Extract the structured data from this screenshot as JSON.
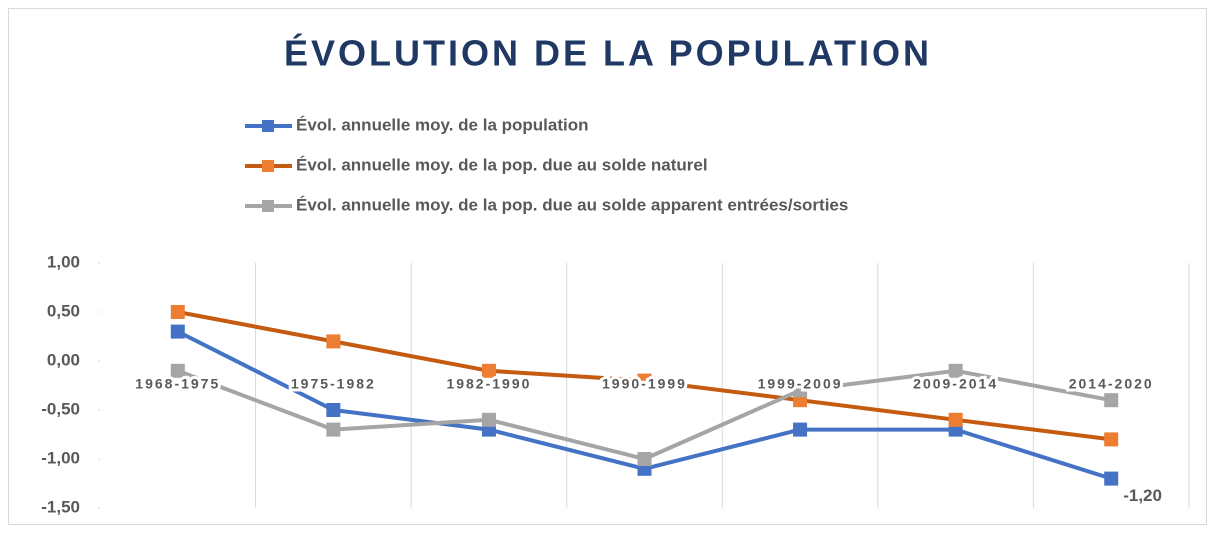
{
  "chart_data": {
    "type": "line",
    "title": "ÉVOLUTION DE LA POPULATION",
    "categories": [
      "1968-1975",
      "1975-1982",
      "1982-1990",
      "1990-1999",
      "1999-2009",
      "2009-2014",
      "2014-2020"
    ],
    "series": [
      {
        "name": "Évol. annuelle moy. de la population",
        "color": "#4472c4",
        "values": [
          0.3,
          -0.5,
          -0.7,
          -1.1,
          -0.7,
          -0.7,
          -1.2
        ],
        "value_labels": [
          null,
          null,
          null,
          null,
          null,
          null,
          "-1,20"
        ]
      },
      {
        "name": "Évol. annuelle moy. de la pop. due au solde naturel",
        "color": "#c55a11",
        "marker_color": "#ed7d31",
        "values": [
          0.5,
          0.2,
          -0.1,
          -0.2,
          -0.4,
          -0.6,
          -0.8
        ]
      },
      {
        "name": "Évol. annuelle moy. de la pop. due au solde apparent entrées/sorties",
        "color": "#a5a5a5",
        "values": [
          -0.1,
          -0.7,
          -0.6,
          -1.0,
          -0.3,
          -0.1,
          -0.4
        ]
      }
    ],
    "ylim": [
      -1.5,
      1.0
    ],
    "yticks": [
      {
        "value": -1.5,
        "label": "-1,50"
      },
      {
        "value": -1.0,
        "label": "-1,00"
      },
      {
        "value": -0.5,
        "label": "-0,50"
      },
      {
        "value": 0,
        "label": "0,00"
      },
      {
        "value": 0.5,
        "label": "0,50"
      },
      {
        "value": 1.0,
        "label": "1,00"
      }
    ],
    "grid": "vertical",
    "legend": "top"
  }
}
